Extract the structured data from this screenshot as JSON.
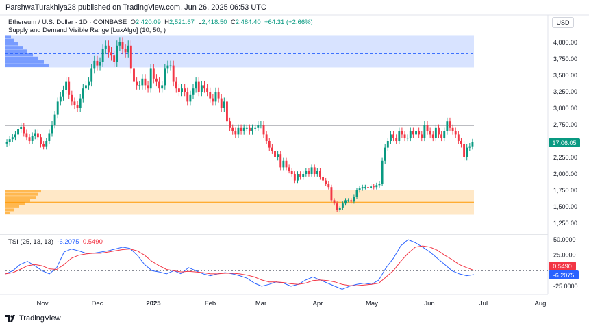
{
  "header": {
    "published": "ParshwaTurakhiya28 published on TradingView.com, Jun 26, 2025 06:53 UTC"
  },
  "legend": {
    "symbol": "Ethereum / U.S. Dollar · 1D · COINBASE",
    "o_label": "O",
    "o_value": "2,420.09",
    "h_label": "H",
    "h_value": "2,521.67",
    "l_label": "L",
    "l_value": "2,418.50",
    "c_label": "C",
    "c_value": "2,484.40",
    "change": "+64.31 (+2.66%)",
    "indicator": "Supply and Demand Visible Range [LuxAlgo] (10, 50, )",
    "tsi_label": "TSI (25, 13, 13)",
    "tsi_value": "-6.2075",
    "tsi_signal": "0.5490"
  },
  "currency": "USD",
  "price_badge": "17:06:05",
  "tsi_badges": {
    "signal": "0.5490",
    "tsi": "-6.2075"
  },
  "logo": "TradingView",
  "colors": {
    "up": "#089981",
    "down": "#f23645",
    "supply": "#2962ff",
    "demand": "#ff9800",
    "tsi": "#2962ff",
    "signal": "#f23645"
  },
  "chart_data": [
    {
      "type": "candlestick",
      "title": "Ethereum / U.S. Dollar · 1D · COINBASE",
      "y_ticks": [
        4000,
        3750,
        3500,
        3250,
        3000,
        2750,
        2500,
        2250,
        2000,
        1750,
        1500,
        1250
      ],
      "y_tick_labels": [
        "4,000.00",
        "3,750.00",
        "3,500.00",
        "3,250.00",
        "3,000.00",
        "2,750.00",
        "2,500.00",
        "2,250.00",
        "2,000.00",
        "1,750.00",
        "1,500.00",
        "1,250.00"
      ],
      "x_labels": [
        "Nov",
        "Dec",
        "2025",
        "Feb",
        "Mar",
        "Apr",
        "May",
        "Jun",
        "Jul",
        "Aug"
      ],
      "supply_zone": [
        3620,
        4110
      ],
      "supply_level": 3830,
      "demand_zone": [
        1380,
        1760
      ],
      "demand_level": 1570,
      "resistance": 2740,
      "current_price": 2484.4,
      "closes": [
        2480,
        2530,
        2560,
        2600,
        2680,
        2720,
        2620,
        2560,
        2500,
        2580,
        2620,
        2560,
        2450,
        2420,
        2500,
        2620,
        2750,
        2900,
        3100,
        3180,
        3280,
        3400,
        3200,
        3100,
        3050,
        3000,
        3150,
        3300,
        3350,
        3400,
        3600,
        3720,
        3650,
        3700,
        3900,
        3950,
        3850,
        3800,
        3700,
        3950,
        4000,
        3900,
        3850,
        3950,
        3600,
        3400,
        3350,
        3350,
        3450,
        3350,
        3300,
        3600,
        3450,
        3400,
        3300,
        3350,
        3600,
        3650,
        3650,
        3400,
        3300,
        3250,
        3300,
        3250,
        3100,
        3200,
        3300,
        3400,
        3250,
        3350,
        3300,
        3250,
        3150,
        3100,
        3250,
        3150,
        3000,
        3100,
        2800,
        2700,
        2650,
        2600,
        2700,
        2650,
        2700,
        2700,
        2650,
        2700,
        2700,
        2750,
        2750,
        2600,
        2500,
        2400,
        2350,
        2250,
        2300,
        2100,
        2200,
        2100,
        2050,
        2000,
        1900,
        2000,
        1950,
        2000,
        2050,
        2000,
        2100,
        2000,
        2050,
        1950,
        1900,
        1850,
        1800,
        1600,
        1550,
        1450,
        1480,
        1550,
        1600,
        1600,
        1580,
        1650,
        1750,
        1780,
        1800,
        1800,
        1790,
        1810,
        1800,
        1830,
        1850,
        2200,
        2400,
        2500,
        2600,
        2550,
        2500,
        2650,
        2600,
        2550,
        2550,
        2650,
        2600,
        2650,
        2600,
        2550,
        2750,
        2650,
        2600,
        2550,
        2700,
        2600,
        2550,
        2650,
        2800,
        2700,
        2650,
        2600,
        2500,
        2450,
        2250,
        2400,
        2420,
        2484
      ]
    },
    {
      "type": "line",
      "title": "TSI (25, 13, 13)",
      "y_ticks": [
        50,
        25,
        0,
        -25
      ],
      "y_tick_labels": [
        "50.0000",
        "25.0000",
        "",
        "-25.0000"
      ],
      "series": [
        {
          "name": "TSI",
          "values": [
            -5,
            0,
            10,
            15,
            8,
            0,
            -5,
            5,
            30,
            35,
            32,
            28,
            28,
            30,
            32,
            35,
            38,
            36,
            25,
            10,
            0,
            -2,
            -5,
            0,
            -5,
            5,
            0,
            -5,
            -8,
            -5,
            -3,
            -5,
            -8,
            -12,
            -20,
            -25,
            -22,
            -18,
            -20,
            -25,
            -22,
            -15,
            -10,
            -15,
            -20,
            -25,
            -30,
            -25,
            -22,
            -20,
            -22,
            -15,
            5,
            20,
            40,
            50,
            45,
            38,
            30,
            20,
            10,
            0,
            -5,
            -8,
            -6.2
          ]
        },
        {
          "name": "Signal",
          "values": [
            -5,
            -3,
            2,
            8,
            10,
            8,
            3,
            2,
            10,
            20,
            25,
            27,
            28,
            28,
            30,
            32,
            34,
            35,
            32,
            25,
            15,
            8,
            2,
            0,
            -2,
            -1,
            -2,
            -3,
            -5,
            -5,
            -4,
            -4,
            -5,
            -7,
            -10,
            -15,
            -18,
            -18,
            -19,
            -21,
            -22,
            -20,
            -16,
            -15,
            -16,
            -18,
            -22,
            -24,
            -24,
            -23,
            -22,
            -20,
            -10,
            0,
            15,
            28,
            38,
            40,
            38,
            33,
            25,
            18,
            10,
            5,
            0.549
          ]
        }
      ]
    }
  ]
}
